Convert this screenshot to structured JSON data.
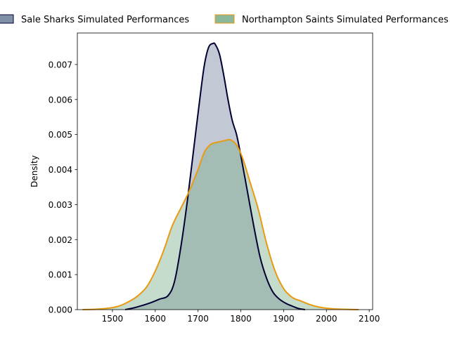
{
  "chart_data": {
    "type": "area",
    "title": "",
    "xlabel": "",
    "ylabel": "Density",
    "xlim": [
      1418,
      2108
    ],
    "ylim": [
      0,
      0.0079
    ],
    "x_ticks": [
      1500,
      1600,
      1700,
      1800,
      1900,
      2000,
      2100
    ],
    "y_ticks": [
      0.0,
      0.001,
      0.002,
      0.003,
      0.004,
      0.005,
      0.006,
      0.007
    ],
    "y_tick_labels": [
      "0.000",
      "0.001",
      "0.002",
      "0.003",
      "0.004",
      "0.005",
      "0.006",
      "0.007"
    ],
    "grid": false,
    "legend_position": "top",
    "series": [
      {
        "name": "Sale Sharks Simulated Performances",
        "line_color": "#000033",
        "fill_color": "#6e7f99",
        "fill_opacity": 0.42,
        "x": [
          1530,
          1550,
          1570,
          1590,
          1610,
          1630,
          1645,
          1660,
          1675,
          1690,
          1705,
          1715,
          1725,
          1735,
          1740,
          1750,
          1760,
          1770,
          1780,
          1790,
          1800,
          1815,
          1830,
          1845,
          1860,
          1875,
          1890,
          1905,
          1920,
          1935,
          1950
        ],
        "y": [
          0.0,
          5e-05,
          0.00012,
          0.0002,
          0.0003,
          0.0004,
          0.0008,
          0.0018,
          0.0031,
          0.0046,
          0.0061,
          0.007,
          0.0075,
          0.0076,
          0.00758,
          0.0073,
          0.0067,
          0.006,
          0.0054,
          0.005,
          0.0044,
          0.0034,
          0.0024,
          0.0015,
          0.0009,
          0.0005,
          0.0003,
          0.00018,
          0.0001,
          3e-05,
          0.0
        ]
      },
      {
        "name": "Northampton Saints Simulated Performances",
        "line_color": "#e89a10",
        "fill_color": "#7fb08f",
        "fill_opacity": 0.45,
        "x": [
          1430,
          1460,
          1490,
          1515,
          1540,
          1560,
          1580,
          1600,
          1620,
          1640,
          1660,
          1680,
          1700,
          1715,
          1730,
          1745,
          1760,
          1775,
          1790,
          1805,
          1820,
          1840,
          1860,
          1880,
          1900,
          1920,
          1940,
          1960,
          1980,
          2000,
          2020,
          2040,
          2075
        ],
        "y": [
          0.0,
          1e-05,
          4e-05,
          0.0001,
          0.00024,
          0.0004,
          0.00065,
          0.0011,
          0.0017,
          0.0024,
          0.0029,
          0.0034,
          0.004,
          0.0045,
          0.00472,
          0.00478,
          0.00482,
          0.00485,
          0.0047,
          0.0043,
          0.0037,
          0.0029,
          0.0019,
          0.0011,
          0.0006,
          0.00035,
          0.00025,
          0.00015,
          8e-05,
          4e-05,
          2e-05,
          1e-05,
          0.0
        ]
      }
    ]
  }
}
